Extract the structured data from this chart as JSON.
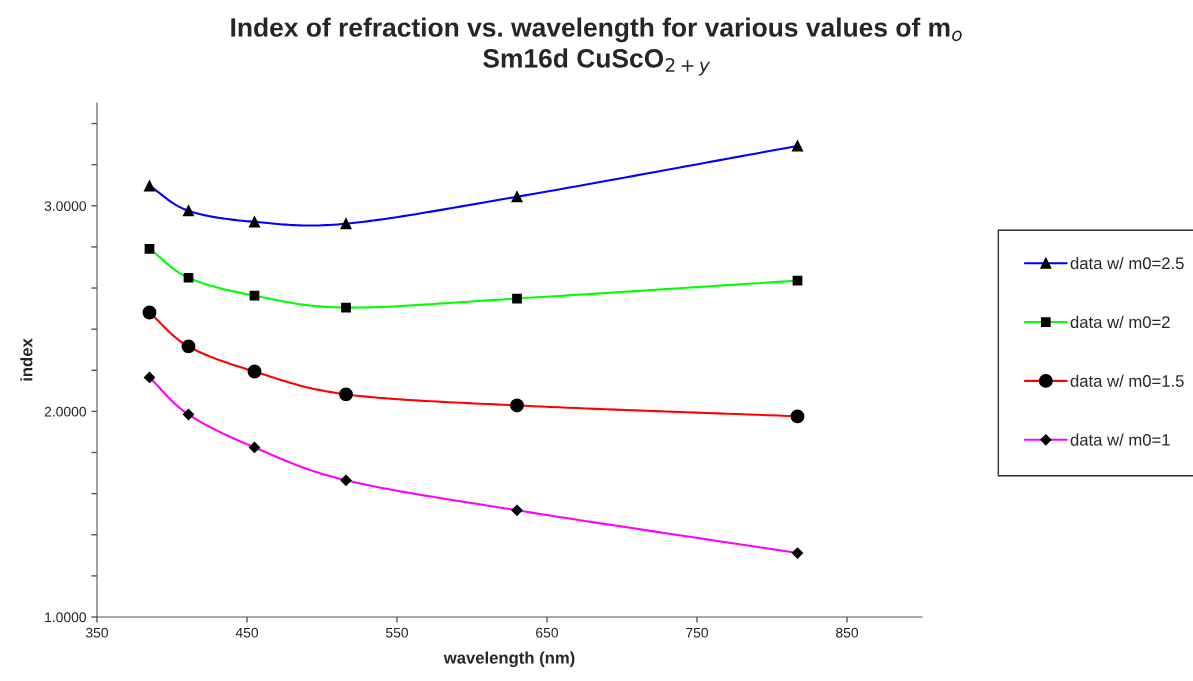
{
  "chart_data": {
    "type": "line",
    "title": "Index of refraction vs. wavelength for various values of m$_{o}$",
    "subtitle": "Sm16d CuScO$_{2+y}$",
    "xlabel": "wavelength (nm)",
    "ylabel": "index",
    "x": [
      385,
      411,
      455,
      516,
      630,
      817
    ],
    "series": [
      {
        "name": "data w/ m0=2.5",
        "color": "#0000ff",
        "marker": "triangle",
        "values": [
          3.097,
          2.976,
          2.922,
          2.913,
          3.044,
          3.291
        ]
      },
      {
        "name": "data w/ m0=2",
        "color": "#00ff00",
        "marker": "square",
        "values": [
          2.791,
          2.65,
          2.563,
          2.505,
          2.549,
          2.636
        ]
      },
      {
        "name": "data w/ m0=1.5",
        "color": "#ff0000",
        "marker": "circle",
        "values": [
          2.481,
          2.316,
          2.194,
          2.083,
          2.029,
          1.976
        ]
      },
      {
        "name": "data w/ m0=1",
        "color": "#ff00ff",
        "marker": "diamond",
        "values": [
          2.165,
          1.985,
          1.825,
          1.665,
          1.519,
          1.311
        ]
      }
    ],
    "xlim": [
      350,
      900
    ],
    "xticks": [
      350,
      450,
      550,
      650,
      750,
      850
    ],
    "ylim": [
      1.0,
      3.5
    ],
    "yticks": [
      {
        "value": 1.0,
        "label": "1.0000"
      },
      {
        "value": 1.2,
        "label": null
      },
      {
        "value": 1.4,
        "label": null
      },
      {
        "value": 1.6,
        "label": null
      },
      {
        "value": 1.8,
        "label": null
      },
      {
        "value": 2.0,
        "label": "2.0000"
      },
      {
        "value": 2.2,
        "label": null
      },
      {
        "value": 2.4,
        "label": null
      },
      {
        "value": 2.6,
        "label": null
      },
      {
        "value": 2.8,
        "label": null
      },
      {
        "value": 3.0,
        "label": "3.0000"
      },
      {
        "value": 3.2,
        "label": null
      },
      {
        "value": 3.4,
        "label": null
      }
    ],
    "grid": false,
    "legend": "right",
    "line_style": "solid"
  }
}
